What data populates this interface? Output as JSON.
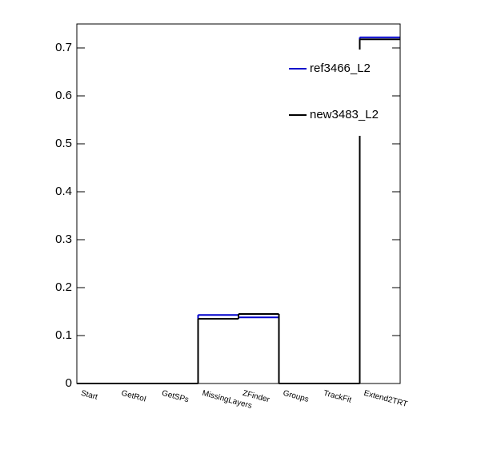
{
  "chart_data": {
    "type": "step",
    "categories": [
      "Start",
      "GetRoI",
      "GetSPs",
      "MissingLayers",
      "ZFinder",
      "Groups",
      "TrackFit",
      "Extend2TRT"
    ],
    "series": [
      {
        "name": "ref3466_L2",
        "color": "#0000cc",
        "values": [
          0,
          0,
          0,
          0.143,
          0.138,
          0,
          0,
          0.722
        ]
      },
      {
        "name": "new3483_L2",
        "color": "#000000",
        "values": [
          0,
          0,
          0,
          0.135,
          0.145,
          0,
          0,
          0.718
        ]
      }
    ],
    "ylim": [
      0,
      0.75
    ],
    "yticks": [
      0,
      0.1,
      0.2,
      0.3,
      0.4,
      0.5,
      0.6,
      0.7
    ]
  }
}
